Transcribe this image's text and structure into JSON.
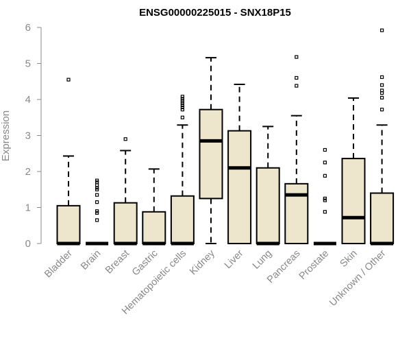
{
  "chart_data": {
    "type": "box",
    "title": "ENSG00000225015 - SNX18P15",
    "xlabel": "",
    "ylabel": "Expression",
    "ylim": [
      0,
      6
    ],
    "yticks": [
      "0",
      "1",
      "2",
      "3",
      "4",
      "5",
      "6"
    ],
    "box_fill": "#ede6cc",
    "categories": [
      {
        "name": "Bladder",
        "min": 0,
        "q1": 0,
        "median": 0,
        "q3": 1.05,
        "max": 2.43,
        "outliers": [
          4.55
        ]
      },
      {
        "name": "Brain",
        "min": 0,
        "q1": 0,
        "median": 0,
        "q3": 0,
        "max": 0,
        "outliers": [
          0.65,
          0.85,
          0.9,
          1.15,
          1.35,
          1.5,
          1.55,
          1.62,
          1.7,
          1.75
        ]
      },
      {
        "name": "Breast",
        "min": 0,
        "q1": 0,
        "median": 0,
        "q3": 1.13,
        "max": 2.58,
        "outliers": [
          2.9
        ]
      },
      {
        "name": "Gastric",
        "min": 0,
        "q1": 0,
        "median": 0,
        "q3": 0.88,
        "max": 2.07,
        "outliers": []
      },
      {
        "name": "Hematopoietic cells",
        "min": 0,
        "q1": 0,
        "median": 0,
        "q3": 1.32,
        "max": 3.29,
        "outliers": [
          3.5,
          3.72,
          3.78,
          3.84,
          3.9,
          3.96,
          4.02,
          4.08
        ]
      },
      {
        "name": "Kidney",
        "min": 0,
        "q1": 1.25,
        "median": 2.85,
        "q3": 3.72,
        "max": 5.16,
        "outliers": []
      },
      {
        "name": "Liver",
        "min": 0,
        "q1": 0,
        "median": 2.1,
        "q3": 3.13,
        "max": 4.42,
        "outliers": []
      },
      {
        "name": "Lung",
        "min": 0,
        "q1": 0,
        "median": 0,
        "q3": 2.1,
        "max": 3.25,
        "outliers": []
      },
      {
        "name": "Pancreas",
        "min": 0,
        "q1": 0,
        "median": 1.35,
        "q3": 1.66,
        "max": 3.55,
        "outliers": [
          4.38,
          4.6,
          5.18
        ]
      },
      {
        "name": "Prostate",
        "min": 0,
        "q1": 0,
        "median": 0,
        "q3": 0,
        "max": 0,
        "outliers": [
          0.88,
          1.2,
          1.25,
          1.88,
          2.25,
          2.6
        ]
      },
      {
        "name": "Skin",
        "min": 0,
        "q1": 0,
        "median": 0.72,
        "q3": 2.36,
        "max": 4.04,
        "outliers": []
      },
      {
        "name": "Unknown / Other",
        "min": 0,
        "q1": 0,
        "median": 0,
        "q3": 1.4,
        "max": 3.29,
        "outliers": [
          3.72,
          4.05,
          4.18,
          4.25,
          4.4,
          4.62,
          5.92
        ]
      }
    ]
  }
}
